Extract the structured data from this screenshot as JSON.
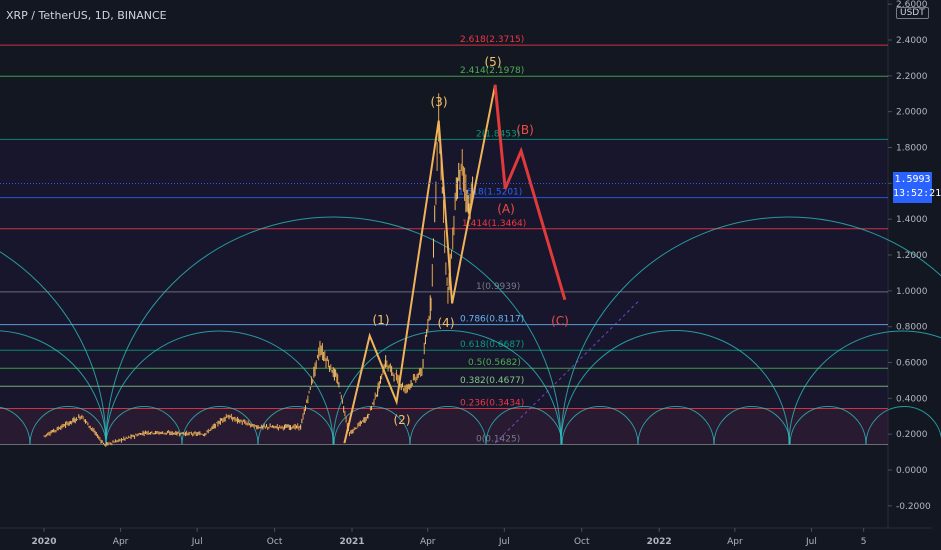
{
  "header": {
    "symbol": "XRP / TetherUS, 1D, BINANCE",
    "currency_badge": "USDT"
  },
  "price_tag": {
    "price": "1.5993",
    "countdown": "13:52:21",
    "color": "#2962ff"
  },
  "colors": {
    "background": "#131722",
    "axis_text": "#b2b5be",
    "impulse": "#f0b35a",
    "correction": "#e03a3a",
    "arc": "#2fc5c5",
    "wave_label_up": "#f5c26b",
    "wave_label_corr": "#ef4b4b"
  },
  "chart_data": {
    "type": "line",
    "title": "",
    "xlabel": "",
    "ylabel": "",
    "ylim": [
      -0.3,
      2.65
    ],
    "y_ticks": [
      "2.6000",
      "2.4000",
      "2.2000",
      "2.0000",
      "1.8000",
      "1.6000",
      "1.4000",
      "1.2000",
      "1.0000",
      "0.8000",
      "0.6000",
      "0.4000",
      "0.2000",
      "0.0000",
      "-0.2000"
    ],
    "x_ticks": [
      "2020",
      "Apr",
      "Jul",
      "Oct",
      "2021",
      "Apr",
      "Jul",
      "Oct",
      "2022",
      "Apr",
      "Jul",
      "5"
    ],
    "fib_levels": [
      {
        "label": "0(0.1425)",
        "value": 0.1425,
        "color": "#787b86"
      },
      {
        "label": "0.236(0.3434)",
        "value": 0.3434,
        "color": "#f23645"
      },
      {
        "label": "0.382(0.4677)",
        "value": 0.4677,
        "color": "#81c784"
      },
      {
        "label": "0.5(0.5682)",
        "value": 0.5682,
        "color": "#4caf50"
      },
      {
        "label": "0.618(0.6687)",
        "value": 0.6687,
        "color": "#089981"
      },
      {
        "label": "0.786(0.8117)",
        "value": 0.8117,
        "color": "#64b5f6"
      },
      {
        "label": "1(0.9939)",
        "value": 0.9939,
        "color": "#787b86"
      },
      {
        "label": "1.414(1.3464)",
        "value": 1.3464,
        "color": "#f23645"
      },
      {
        "label": "1.618(1.5201)",
        "value": 1.5201,
        "color": "#2962ff"
      },
      {
        "label": "2(1.8453)",
        "value": 1.8453,
        "color": "#089981"
      },
      {
        "label": "2.414(2.1978)",
        "value": 2.1978,
        "color": "#4caf50"
      },
      {
        "label": "2.618(2.3715)",
        "value": 2.3715,
        "color": "#f23645"
      }
    ],
    "waves": [
      {
        "label": "(1)",
        "value": 0.75
      },
      {
        "label": "(2)",
        "value": 0.38
      },
      {
        "label": "(3)",
        "value": 1.95
      },
      {
        "label": "(4)",
        "value": 0.93
      },
      {
        "label": "(5)",
        "value": 2.15
      },
      {
        "label": "(A)",
        "value": 1.57
      },
      {
        "label": "(B)",
        "value": 1.78
      },
      {
        "label": "(C)",
        "value": 0.95
      }
    ],
    "impulse_path": [
      {
        "x": "2020-12-23",
        "y": 0.15
      },
      {
        "x": "2021-01-22",
        "y": 0.75
      },
      {
        "x": "2021-02-23",
        "y": 0.38
      },
      {
        "x": "2021-04-14",
        "y": 1.95
      },
      {
        "x": "2021-04-30",
        "y": 0.93
      },
      {
        "x": "2021-06-20",
        "y": 2.15
      }
    ],
    "correction_path": [
      {
        "x": "2021-06-20",
        "y": 2.15
      },
      {
        "x": "2021-07-02",
        "y": 1.57
      },
      {
        "x": "2021-07-21",
        "y": 1.78
      },
      {
        "x": "2021-09-11",
        "y": 0.95
      }
    ],
    "current_price": 1.5993
  }
}
